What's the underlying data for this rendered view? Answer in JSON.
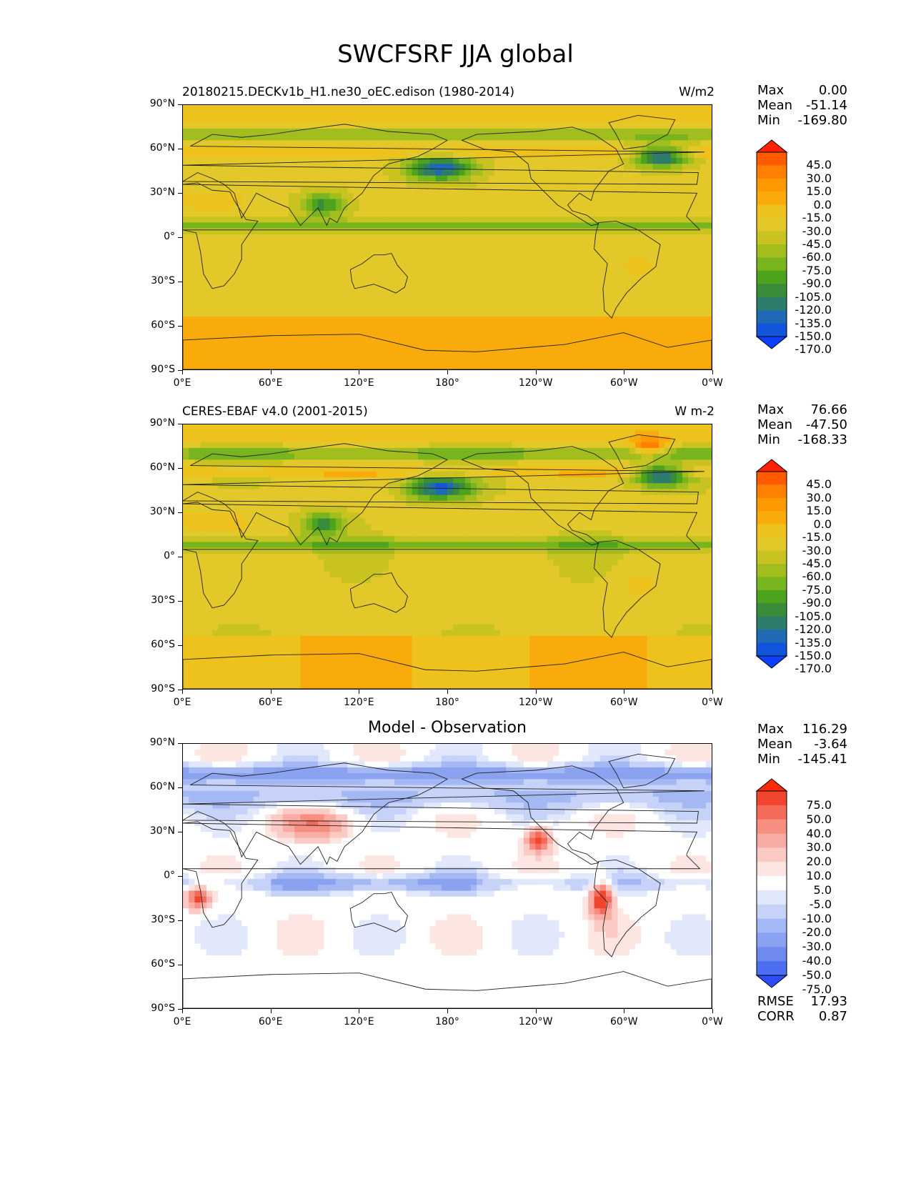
{
  "figure": {
    "title": "SWCFSRF JJA global"
  },
  "axes": {
    "y_ticks": [
      "90°N",
      "60°N",
      "30°N",
      "0°",
      "30°S",
      "60°S",
      "90°S"
    ],
    "x_ticks": [
      "0°E",
      "60°E",
      "120°E",
      "180°",
      "120°W",
      "60°W",
      "0°W"
    ]
  },
  "panels": [
    {
      "id": "model",
      "title_left": "20180215.DECKv1b_H1.ne30_oEC.edison (1980-2014)",
      "title_right": "W/m2",
      "title_center": "",
      "stats": [
        {
          "label": "Max",
          "value": "0.00"
        },
        {
          "label": "Mean",
          "value": "-51.14"
        },
        {
          "label": "Min",
          "value": "-169.80"
        }
      ],
      "colorbar": {
        "labels": [
          "45.0",
          "30.0",
          "15.0",
          "0.0",
          "-15.0",
          "-30.0",
          "-45.0",
          "-60.0",
          "-75.0",
          "-90.0",
          "-105.0",
          "-120.0",
          "-135.0",
          "-150.0",
          "-170.0"
        ],
        "colors": [
          "#ff2200",
          "#ff5a00",
          "#ff8000",
          "#ff9900",
          "#f9ab0c",
          "#eec21c",
          "#e2c828",
          "#c8c320",
          "#a2be1e",
          "#78b41e",
          "#4ea31c",
          "#3a8c3a",
          "#2d7c6c",
          "#1f6ab4",
          "#1155dc",
          "#0a40ff"
        ]
      }
    },
    {
      "id": "obs",
      "title_left": "CERES-EBAF v4.0 (2001-2015)",
      "title_right": "W m-2",
      "title_center": "",
      "stats": [
        {
          "label": "Max",
          "value": "76.66"
        },
        {
          "label": "Mean",
          "value": "-47.50"
        },
        {
          "label": "Min",
          "value": "-168.33"
        }
      ],
      "colorbar": {
        "labels": [
          "45.0",
          "30.0",
          "15.0",
          "0.0",
          "-15.0",
          "-30.0",
          "-45.0",
          "-60.0",
          "-75.0",
          "-90.0",
          "-105.0",
          "-120.0",
          "-135.0",
          "-150.0",
          "-170.0"
        ],
        "colors": [
          "#ff2200",
          "#ff5a00",
          "#ff8000",
          "#ff9900",
          "#f9ab0c",
          "#eec21c",
          "#e2c828",
          "#c8c320",
          "#a2be1e",
          "#78b41e",
          "#4ea31c",
          "#3a8c3a",
          "#2d7c6c",
          "#1f6ab4",
          "#1155dc",
          "#0a40ff"
        ]
      }
    },
    {
      "id": "diff",
      "title_left": "",
      "title_right": "",
      "title_center": "Model - Observation",
      "stats": [
        {
          "label": "Max",
          "value": "116.29"
        },
        {
          "label": "Mean",
          "value": "-3.64"
        },
        {
          "label": "Min",
          "value": "-145.41"
        }
      ],
      "colorbar": {
        "labels": [
          "75.0",
          "50.0",
          "40.0",
          "30.0",
          "20.0",
          "10.0",
          "5.0",
          "-5.0",
          "-10.0",
          "-20.0",
          "-30.0",
          "-40.0",
          "-50.0",
          "-75.0"
        ],
        "colors": [
          "#ff2a00",
          "#f2452e",
          "#f36a5a",
          "#f68e82",
          "#f8aca4",
          "#fbcac4",
          "#fde6e2",
          "#ffffff",
          "#e2e8fb",
          "#c6d2f8",
          "#a4b8f4",
          "#8aa2f0",
          "#6e8aee",
          "#4e6ef2",
          "#2b4cff"
        ]
      },
      "metrics": [
        {
          "label": "RMSE",
          "value": "17.93"
        },
        {
          "label": "CORR",
          "value": "0.87"
        }
      ]
    }
  ],
  "chart_data": [
    {
      "type": "heatmap",
      "title": "20180215.DECKv1b_H1.ne30_oEC.edison (1980-2014)",
      "units": "W/m2",
      "x_range": [
        0,
        360
      ],
      "y_range": [
        -90,
        90
      ],
      "levels": [
        -170,
        -150,
        -135,
        -120,
        -105,
        -90,
        -75,
        -60,
        -45,
        -30,
        -15,
        0,
        15,
        30,
        45
      ],
      "stats": {
        "max": 0.0,
        "mean": -51.14,
        "min": -169.8
      }
    },
    {
      "type": "heatmap",
      "title": "CERES-EBAF v4.0 (2001-2015)",
      "units": "W m-2",
      "x_range": [
        0,
        360
      ],
      "y_range": [
        -90,
        90
      ],
      "levels": [
        -170,
        -150,
        -135,
        -120,
        -105,
        -90,
        -75,
        -60,
        -45,
        -30,
        -15,
        0,
        15,
        30,
        45
      ],
      "stats": {
        "max": 76.66,
        "mean": -47.5,
        "min": -168.33
      }
    },
    {
      "type": "heatmap",
      "title": "Model - Observation",
      "x_range": [
        0,
        360
      ],
      "y_range": [
        -90,
        90
      ],
      "levels": [
        -75,
        -50,
        -40,
        -30,
        -20,
        -10,
        -5,
        5,
        10,
        20,
        30,
        40,
        50,
        75
      ],
      "stats": {
        "max": 116.29,
        "mean": -3.64,
        "min": -145.41,
        "rmse": 17.93,
        "corr": 0.87
      }
    }
  ]
}
